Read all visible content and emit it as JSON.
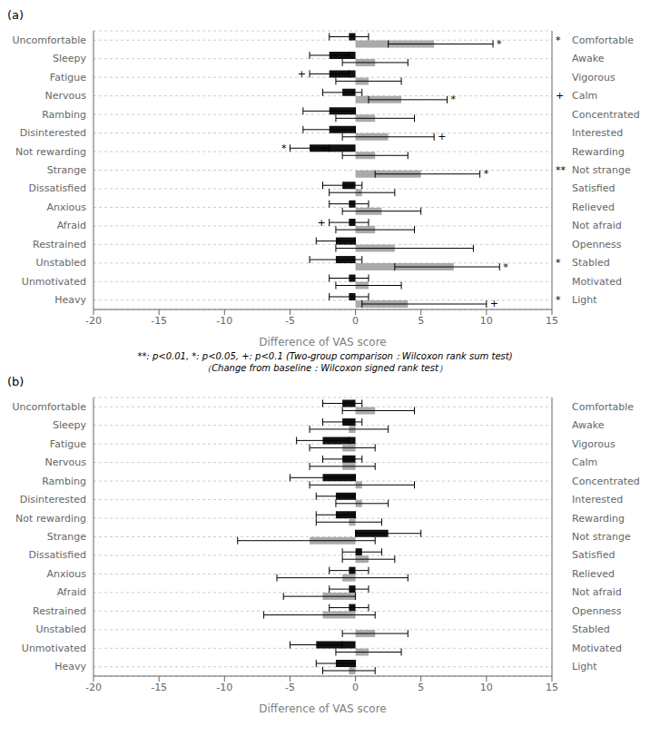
{
  "chart_data": [
    {
      "type": "bar",
      "orientation": "horizontal",
      "title": "(a)",
      "categories": [
        "Uncomfortable",
        "Sleepy",
        "Fatigue",
        "Nervous",
        "Rambing",
        "Disinterested",
        "Not rewarding",
        "Strange",
        "Dissatisfied",
        "Anxious",
        "Afraid",
        "Restrained",
        "Unstabled",
        "Unmotivated",
        "Heavy"
      ],
      "categories_right": [
        "Comfortable",
        "Awake",
        "Vigorous",
        "Calm",
        "Concentrated",
        "Interested",
        "Rewarding",
        "Not strange",
        "Satisfied",
        "Relieved",
        "Not afraid",
        "Openness",
        "Stabled",
        "Motivated",
        "Light"
      ],
      "series": [
        {
          "color": "#111111",
          "values": [
            -0.5,
            -2.0,
            -2.0,
            -1.0,
            -2.0,
            -2.0,
            -3.5,
            0.0,
            -1.0,
            -0.5,
            -0.5,
            -1.5,
            -1.5,
            -0.5,
            -0.5
          ],
          "error_low": [
            1.5,
            1.5,
            1.5,
            1.5,
            2.0,
            2.0,
            1.5,
            1.5,
            1.5,
            1.5,
            1.5,
            1.5,
            2.0,
            1.5,
            1.5
          ],
          "error_high": [
            1.5,
            1.5,
            1.5,
            1.5,
            2.0,
            2.0,
            1.5,
            1.5,
            1.5,
            1.5,
            1.5,
            1.5,
            2.0,
            1.5,
            1.5
          ],
          "annotations": [
            null,
            null,
            "+",
            null,
            null,
            null,
            "*",
            null,
            null,
            null,
            "+",
            null,
            null,
            null,
            null
          ]
        },
        {
          "color": "#aaaaaa",
          "values": [
            6.0,
            1.5,
            1.0,
            3.5,
            1.5,
            2.5,
            1.5,
            5.0,
            0.5,
            2.0,
            1.5,
            3.0,
            7.5,
            1.0,
            4.0
          ],
          "error_low": [
            3.5,
            2.5,
            2.5,
            2.5,
            3.0,
            3.5,
            2.5,
            3.5,
            2.5,
            3.0,
            3.0,
            4.5,
            4.5,
            2.5,
            3.5
          ],
          "error_high": [
            4.5,
            2.5,
            2.5,
            3.5,
            3.0,
            3.5,
            2.5,
            4.5,
            2.5,
            3.0,
            3.0,
            6.0,
            3.5,
            2.5,
            6.0
          ],
          "annotations": [
            "*",
            null,
            null,
            "*",
            null,
            "+",
            null,
            "*",
            null,
            null,
            null,
            null,
            "*",
            null,
            "+"
          ]
        }
      ],
      "row_annotations": [
        "*",
        null,
        null,
        "+",
        null,
        null,
        null,
        "**",
        null,
        null,
        null,
        null,
        "*",
        null,
        "*"
      ],
      "xlim": [
        -20,
        15
      ],
      "xticks": [
        -20,
        -15,
        -10,
        -5,
        0,
        5,
        10,
        15
      ],
      "xlabel": "Difference of VAS score",
      "grid": true,
      "footnote": [
        "**: p<0.01, *: p<0.05, +: p<0.1 (Two-group comparison：Wilcoxon rank sum test)",
        "（Change from baseline：Wilcoxon signed rank test）"
      ]
    },
    {
      "type": "bar",
      "orientation": "horizontal",
      "title": "(b)",
      "categories": [
        "Uncomfortable",
        "Sleepy",
        "Fatigue",
        "Nervous",
        "Rambing",
        "Disinterested",
        "Not rewarding",
        "Strange",
        "Dissatisfied",
        "Anxious",
        "Afraid",
        "Restrained",
        "Unstabled",
        "Unmotivated",
        "Heavy"
      ],
      "categories_right": [
        "Comfortable",
        "Awake",
        "Vigorous",
        "Calm",
        "Concentrated",
        "Interested",
        "Rewarding",
        "Not strange",
        "Satisfied",
        "Relieved",
        "Not afraid",
        "Openness",
        "Stabled",
        "Motivated",
        "Light"
      ],
      "series": [
        {
          "color": "#111111",
          "values": [
            -1.0,
            -1.0,
            -2.5,
            -1.0,
            -2.5,
            -1.5,
            -1.5,
            2.5,
            0.5,
            -0.5,
            -0.5,
            -0.5,
            0.0,
            -3.0,
            -1.5
          ],
          "error_low": [
            1.5,
            1.5,
            2.0,
            1.5,
            2.5,
            1.5,
            1.5,
            2.5,
            1.5,
            1.5,
            1.5,
            1.5,
            1.5,
            2.0,
            1.5
          ],
          "error_high": [
            1.5,
            1.5,
            2.0,
            1.5,
            2.5,
            1.5,
            1.5,
            2.5,
            1.5,
            1.5,
            1.5,
            1.5,
            1.5,
            2.0,
            1.5
          ]
        },
        {
          "color": "#aaaaaa",
          "values": [
            1.5,
            -0.5,
            -1.0,
            -1.0,
            0.5,
            0.5,
            -0.5,
            -3.5,
            1.0,
            -1.0,
            -2.5,
            -2.5,
            1.5,
            1.0,
            -0.5
          ],
          "error_low": [
            2.5,
            3.0,
            2.5,
            2.5,
            4.0,
            2.0,
            2.5,
            5.5,
            2.0,
            5.0,
            3.0,
            4.5,
            2.5,
            2.5,
            2.0
          ],
          "error_high": [
            3.0,
            3.0,
            2.5,
            2.5,
            4.0,
            2.0,
            2.5,
            5.0,
            2.0,
            5.0,
            2.5,
            4.0,
            2.5,
            2.5,
            2.0
          ]
        }
      ],
      "xlim": [
        -20,
        15
      ],
      "xticks": [
        -20,
        -15,
        -10,
        -5,
        0,
        5,
        10,
        15
      ],
      "xlabel": "Difference of VAS score",
      "grid": true
    }
  ]
}
